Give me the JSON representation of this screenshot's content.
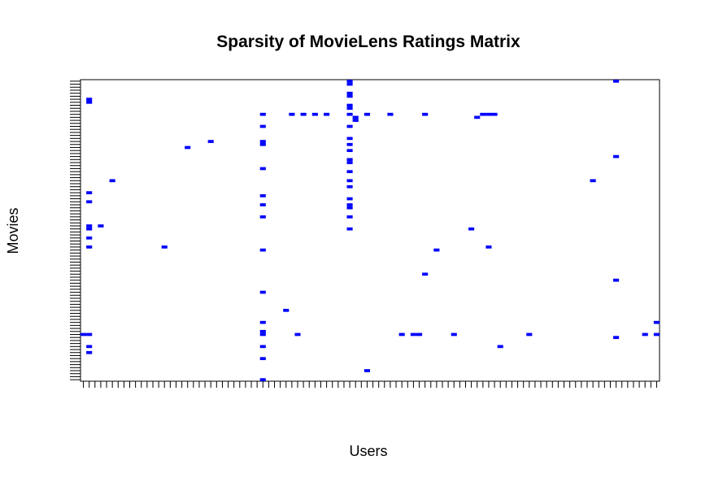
{
  "chart_data": {
    "type": "heatmap",
    "title": "Sparsity of MovieLens Ratings Matrix",
    "xlabel": "Users",
    "ylabel": "Movies",
    "x_count": 100,
    "y_count": 100,
    "x_tick_labels": "none",
    "y_tick_labels": "none",
    "grid": false,
    "legend": "none",
    "colors": {
      "rated": "#0000ff",
      "background": "#ffffff",
      "frame": "#000000",
      "ticks": "#000000"
    },
    "cells": [
      [
        47,
        99
      ],
      [
        47,
        96
      ],
      [
        47,
        95
      ],
      [
        47,
        89
      ],
      [
        47,
        81
      ],
      [
        47,
        77
      ],
      [
        47,
        73
      ],
      [
        47,
        67
      ],
      [
        47,
        61
      ],
      [
        47,
        51
      ],
      [
        47,
        55
      ],
      [
        47,
        58
      ],
      [
        47,
        59
      ],
      [
        47,
        65
      ],
      [
        47,
        70
      ],
      [
        47,
        74
      ],
      [
        47,
        79
      ],
      [
        47,
        85
      ],
      [
        47,
        91
      ],
      [
        47,
        92
      ],
      [
        47,
        100
      ],
      [
        32,
        89
      ],
      [
        32,
        85
      ],
      [
        32,
        80
      ],
      [
        32,
        79
      ],
      [
        32,
        71
      ],
      [
        32,
        62
      ],
      [
        32,
        59
      ],
      [
        32,
        55
      ],
      [
        32,
        44
      ],
      [
        32,
        30
      ],
      [
        32,
        20
      ],
      [
        32,
        17
      ],
      [
        32,
        16
      ],
      [
        32,
        12
      ],
      [
        32,
        8
      ],
      [
        32,
        1
      ],
      [
        36,
        24
      ],
      [
        38,
        16
      ],
      [
        58,
        16
      ],
      [
        59,
        16
      ],
      [
        50,
        4
      ],
      [
        78,
        16
      ],
      [
        98,
        16
      ],
      [
        100,
        16
      ],
      [
        48,
        87
      ],
      [
        48,
        88
      ],
      [
        43,
        89
      ],
      [
        56,
        16
      ],
      [
        47,
        58
      ],
      [
        93,
        100
      ],
      [
        93,
        75
      ],
      [
        93,
        34
      ],
      [
        93,
        15
      ],
      [
        100,
        20
      ],
      [
        2,
        93
      ],
      [
        2,
        94
      ],
      [
        2,
        63
      ],
      [
        2,
        60
      ],
      [
        2,
        51
      ],
      [
        2,
        52
      ],
      [
        2,
        48
      ],
      [
        2,
        45
      ],
      [
        2,
        16
      ],
      [
        2,
        12
      ],
      [
        2,
        10
      ],
      [
        1,
        16
      ],
      [
        4,
        52
      ],
      [
        6,
        67
      ],
      [
        15,
        45
      ],
      [
        19,
        78
      ],
      [
        23,
        80
      ],
      [
        37,
        89
      ],
      [
        39,
        89
      ],
      [
        41,
        89
      ],
      [
        50,
        89
      ],
      [
        54,
        89
      ],
      [
        60,
        89
      ],
      [
        71,
        89
      ],
      [
        72,
        89
      ],
      [
        69,
        88
      ],
      [
        70,
        89
      ],
      [
        73,
        12
      ],
      [
        71,
        45
      ],
      [
        62,
        44
      ],
      [
        65,
        16
      ],
      [
        68,
        51
      ],
      [
        89,
        67
      ],
      [
        60,
        36
      ]
    ]
  }
}
